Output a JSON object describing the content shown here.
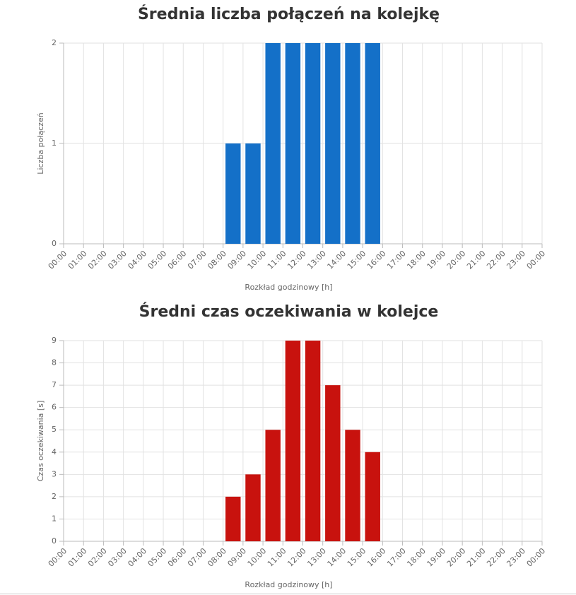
{
  "chart_data": [
    {
      "type": "histogram",
      "title": "Średnia liczba połączeń na kolejkę",
      "ylabel": "Liczba połączeń",
      "xlabel": "Rozkład godzinowy [h]",
      "color": "#1470c8",
      "grid": true,
      "bins": [
        0,
        1,
        2,
        3,
        4,
        5,
        6,
        7,
        8,
        9,
        10,
        11,
        12,
        13,
        14,
        15,
        16,
        17,
        18,
        19,
        20,
        21,
        22,
        23,
        24
      ],
      "counts": [
        0,
        0,
        0,
        0,
        0,
        0,
        0,
        0,
        1,
        1,
        2,
        2,
        2,
        2,
        2,
        2,
        0,
        0,
        0,
        0,
        0,
        0,
        0,
        0
      ],
      "xlim": [
        0,
        24
      ],
      "xticks": [
        {
          "value": 0,
          "label": "00:00"
        },
        {
          "value": 1,
          "label": "01:00"
        },
        {
          "value": 2,
          "label": "02:00"
        },
        {
          "value": 3,
          "label": "03:00"
        },
        {
          "value": 4,
          "label": "04:00"
        },
        {
          "value": 5,
          "label": "05:00"
        },
        {
          "value": 6,
          "label": "06:00"
        },
        {
          "value": 7,
          "label": "07:00"
        },
        {
          "value": 8,
          "label": "08:00"
        },
        {
          "value": 9,
          "label": "09:00"
        },
        {
          "value": 10,
          "label": "10:00"
        },
        {
          "value": 11,
          "label": "11:00"
        },
        {
          "value": 12,
          "label": "12:00"
        },
        {
          "value": 13,
          "label": "13:00"
        },
        {
          "value": 14,
          "label": "14:00"
        },
        {
          "value": 15,
          "label": "15:00"
        },
        {
          "value": 16,
          "label": "16:00"
        },
        {
          "value": 17,
          "label": "17:00"
        },
        {
          "value": 18,
          "label": "18:00"
        },
        {
          "value": 19,
          "label": "19:00"
        },
        {
          "value": 20,
          "label": "20:00"
        },
        {
          "value": 21,
          "label": "21:00"
        },
        {
          "value": 22,
          "label": "22:00"
        },
        {
          "value": 23,
          "label": "23:00"
        },
        {
          "value": 24,
          "label": "00:00"
        }
      ],
      "ylim": [
        0,
        2
      ],
      "yticks": [
        0,
        1,
        2
      ]
    },
    {
      "type": "histogram",
      "title": "Średni czas oczekiwania w kolejce",
      "ylabel": "Czas oczekiwania [s]",
      "xlabel": "Rozkład godzinowy [h]",
      "color": "#c8120e",
      "grid": true,
      "bins": [
        0,
        1,
        2,
        3,
        4,
        5,
        6,
        7,
        8,
        9,
        10,
        11,
        12,
        13,
        14,
        15,
        16,
        17,
        18,
        19,
        20,
        21,
        22,
        23,
        24
      ],
      "counts": [
        0,
        0,
        0,
        0,
        0,
        0,
        0,
        0,
        2,
        3,
        5,
        9,
        9,
        7,
        5,
        4,
        0,
        0,
        0,
        0,
        0,
        0,
        0,
        0
      ],
      "xlim": [
        0,
        24
      ],
      "xticks": [
        {
          "value": 0,
          "label": "00:00"
        },
        {
          "value": 1,
          "label": "01:00"
        },
        {
          "value": 2,
          "label": "02:00"
        },
        {
          "value": 3,
          "label": "03:00"
        },
        {
          "value": 4,
          "label": "04:00"
        },
        {
          "value": 5,
          "label": "05:00"
        },
        {
          "value": 6,
          "label": "06:00"
        },
        {
          "value": 7,
          "label": "07:00"
        },
        {
          "value": 8,
          "label": "08:00"
        },
        {
          "value": 9,
          "label": "09:00"
        },
        {
          "value": 10,
          "label": "10:00"
        },
        {
          "value": 11,
          "label": "11:00"
        },
        {
          "value": 12,
          "label": "12:00"
        },
        {
          "value": 13,
          "label": "13:00"
        },
        {
          "value": 14,
          "label": "14:00"
        },
        {
          "value": 15,
          "label": "15:00"
        },
        {
          "value": 16,
          "label": "16:00"
        },
        {
          "value": 17,
          "label": "17:00"
        },
        {
          "value": 18,
          "label": "18:00"
        },
        {
          "value": 19,
          "label": "19:00"
        },
        {
          "value": 20,
          "label": "20:00"
        },
        {
          "value": 21,
          "label": "21:00"
        },
        {
          "value": 22,
          "label": "22:00"
        },
        {
          "value": 23,
          "label": "23:00"
        },
        {
          "value": 24,
          "label": "00:00"
        }
      ],
      "ylim": [
        0,
        9
      ],
      "yticks": [
        0,
        1,
        2,
        3,
        4,
        5,
        6,
        7,
        8,
        9
      ]
    }
  ]
}
